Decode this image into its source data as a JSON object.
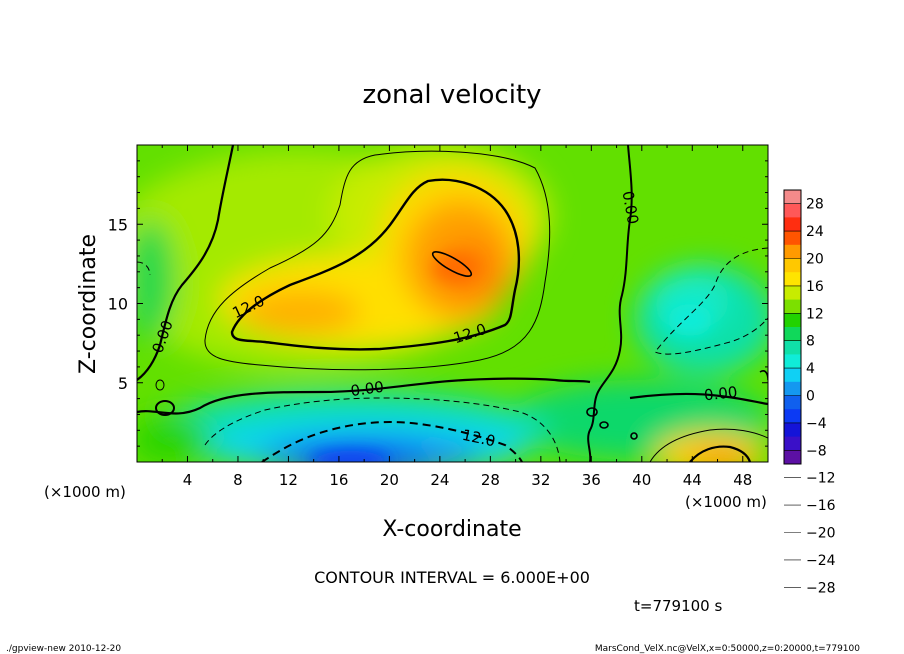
{
  "chart_data": {
    "type": "heatmap",
    "title": "zonal velocity",
    "xlabel": "X-coordinate",
    "ylabel": "Z-coordinate",
    "x_unit_label": "(×1000 m)",
    "y_unit_label": "(×1000 m)",
    "xlim": [
      0,
      50
    ],
    "ylim": [
      0,
      20
    ],
    "x_ticks": [
      4,
      8,
      12,
      16,
      20,
      24,
      28,
      32,
      36,
      40,
      44,
      48
    ],
    "y_ticks": [
      5,
      10,
      15
    ],
    "contour_interval_text": "CONTOUR INTERVAL = 6.000E+00",
    "time_text": "t=779100 s",
    "footer_left": "./gpview-new  2010-12-20",
    "footer_right": "MarsCond_VelX.nc@VelX,x=0:50000,z=0:20000,t=779100",
    "contour_labels": [
      {
        "text": "12.0",
        "x": 9,
        "y": 9.5,
        "angle": -25
      },
      {
        "text": "12.0",
        "x": 26.5,
        "y": 7.8,
        "angle": -18
      },
      {
        "text": "0.00",
        "x": 2.4,
        "y": 7.8,
        "angle": -70
      },
      {
        "text": "0.00",
        "x": 18.3,
        "y": 4.3,
        "angle": -8
      },
      {
        "text": "0.00",
        "x": 38.7,
        "y": 16.0,
        "angle": 80
      },
      {
        "text": "0.00",
        "x": 46.3,
        "y": 4.0,
        "angle": -6
      },
      {
        "text": "12.0",
        "x": 27.0,
        "y": 1.2,
        "angle": 12
      }
    ],
    "colorbar": {
      "labels": [
        28,
        24,
        20,
        16,
        12,
        8,
        4,
        0,
        -4,
        -8,
        -12,
        -16,
        -20,
        -24,
        -28
      ],
      "colors": [
        "#f48a8a",
        "#ff5858",
        "#ff2e10",
        "#ff5500",
        "#ff9a00",
        "#ffc800",
        "#ffe400",
        "#c8ec00",
        "#7ce000",
        "#22d200",
        "#10d85a",
        "#10e0a8",
        "#10ecd8",
        "#10d0f4",
        "#1498f0",
        "#1060ee",
        "#0c3af4",
        "#1414d8",
        "#3a10c8",
        "#5c10a4"
      ]
    },
    "data_summary": {
      "max_positive_core": {
        "x": 24.5,
        "z": 12.8,
        "approx_value": 20
      },
      "min_negative_core": {
        "x": 21,
        "z": 1,
        "approx_value": -20
      },
      "min_right_negative": {
        "x": 46,
        "z": 9,
        "approx_value": -8
      }
    }
  }
}
